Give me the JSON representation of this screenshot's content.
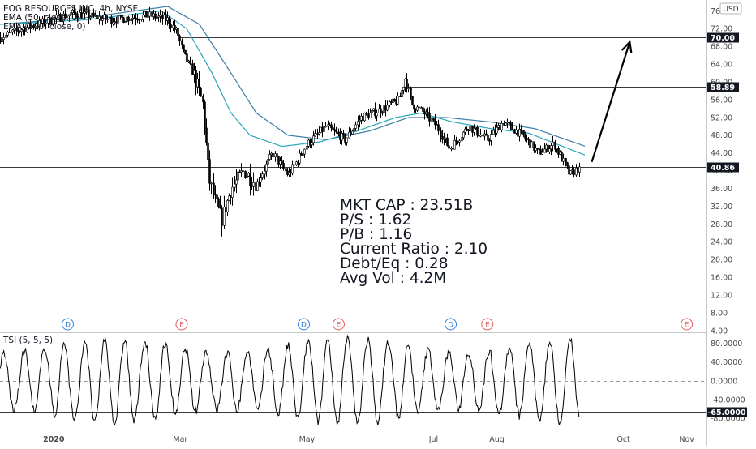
{
  "legend": {
    "title": "EOG RESOURCES INC, 4h, NYSE",
    "ema1": "EMA (50, close, 0)",
    "ema2": "EMA (100, close, 0)",
    "tsi": "TSI (5, 5, 5)"
  },
  "currency_badge": "USD",
  "fundamentals": [
    "MKT CAP : 23.51B",
    "P/S : 1.62",
    "P/B : 1.16",
    "Current Ratio : 2.10",
    "Debt/Eq : 0.28",
    "Avg Vol : 4.2M"
  ],
  "events": [
    {
      "label": "D",
      "x": 0.22,
      "color": "#2f7ed8"
    },
    {
      "label": "E",
      "x": 2.02,
      "color": "#e25a5a"
    },
    {
      "label": "D",
      "x": 3.95,
      "color": "#2f7ed8"
    },
    {
      "label": "E",
      "x": 4.5,
      "color": "#e25a5a"
    },
    {
      "label": "D",
      "x": 6.27,
      "color": "#2f7ed8"
    },
    {
      "label": "E",
      "x": 6.85,
      "color": "#e25a5a"
    },
    {
      "label": "E",
      "x": 10.0,
      "color": "#e25a5a"
    }
  ],
  "chart_data": [
    {
      "type": "candlestick",
      "x_unit": "months (0 = Jan 2020)",
      "xlim": [
        -0.85,
        10.3
      ],
      "ylim": [
        4,
        77
      ],
      "x_ticks": [
        {
          "label": "2020",
          "x": 0
        },
        {
          "label": "Mar",
          "x": 2
        },
        {
          "label": "May",
          "x": 4
        },
        {
          "label": "Jul",
          "x": 6
        },
        {
          "label": "Aug",
          "x": 7
        },
        {
          "label": "Oct",
          "x": 9
        },
        {
          "label": "Nov",
          "x": 10
        }
      ],
      "y_ticks": [
        4,
        8,
        12,
        16,
        20,
        24,
        28,
        32,
        36,
        40,
        44,
        48,
        52,
        56,
        60,
        64,
        68,
        72,
        76
      ],
      "price_waypoints": [
        {
          "x": -0.85,
          "y": 70
        },
        {
          "x": -0.5,
          "y": 72
        },
        {
          "x": 0.3,
          "y": 75.5
        },
        {
          "x": 0.9,
          "y": 74
        },
        {
          "x": 1.5,
          "y": 75
        },
        {
          "x": 1.8,
          "y": 74
        },
        {
          "x": 1.95,
          "y": 71
        },
        {
          "x": 2.05,
          "y": 66
        },
        {
          "x": 2.2,
          "y": 62
        },
        {
          "x": 2.35,
          "y": 55
        },
        {
          "x": 2.45,
          "y": 38
        },
        {
          "x": 2.55,
          "y": 33
        },
        {
          "x": 2.65,
          "y": 29
        },
        {
          "x": 2.8,
          "y": 36
        },
        {
          "x": 3.0,
          "y": 40
        },
        {
          "x": 3.2,
          "y": 37
        },
        {
          "x": 3.45,
          "y": 44
        },
        {
          "x": 3.7,
          "y": 39
        },
        {
          "x": 4.0,
          "y": 46
        },
        {
          "x": 4.3,
          "y": 50
        },
        {
          "x": 4.6,
          "y": 47
        },
        {
          "x": 4.85,
          "y": 52
        },
        {
          "x": 5.2,
          "y": 54
        },
        {
          "x": 5.45,
          "y": 56
        },
        {
          "x": 5.55,
          "y": 61
        },
        {
          "x": 5.65,
          "y": 55
        },
        {
          "x": 5.85,
          "y": 53
        },
        {
          "x": 6.05,
          "y": 50
        },
        {
          "x": 6.25,
          "y": 45
        },
        {
          "x": 6.55,
          "y": 50
        },
        {
          "x": 6.85,
          "y": 47
        },
        {
          "x": 7.1,
          "y": 51
        },
        {
          "x": 7.4,
          "y": 48
        },
        {
          "x": 7.65,
          "y": 44
        },
        {
          "x": 7.9,
          "y": 46
        },
        {
          "x": 8.05,
          "y": 42
        },
        {
          "x": 8.15,
          "y": 39
        },
        {
          "x": 8.3,
          "y": 40.86
        }
      ],
      "ema_50": [
        {
          "x": -0.85,
          "y": 73
        },
        {
          "x": 0.5,
          "y": 74
        },
        {
          "x": 1.7,
          "y": 76
        },
        {
          "x": 2.1,
          "y": 72
        },
        {
          "x": 2.5,
          "y": 62
        },
        {
          "x": 2.8,
          "y": 53
        },
        {
          "x": 3.1,
          "y": 48
        },
        {
          "x": 3.6,
          "y": 45.5
        },
        {
          "x": 4.2,
          "y": 46.5
        },
        {
          "x": 4.8,
          "y": 49
        },
        {
          "x": 5.4,
          "y": 52
        },
        {
          "x": 5.8,
          "y": 53
        },
        {
          "x": 6.3,
          "y": 51
        },
        {
          "x": 6.9,
          "y": 49.5
        },
        {
          "x": 7.5,
          "y": 48.5
        },
        {
          "x": 8.4,
          "y": 43.5
        }
      ],
      "ema_100": [
        {
          "x": -0.85,
          "y": 73
        },
        {
          "x": 0.5,
          "y": 74.5
        },
        {
          "x": 1.8,
          "y": 77
        },
        {
          "x": 2.3,
          "y": 73
        },
        {
          "x": 2.8,
          "y": 62
        },
        {
          "x": 3.2,
          "y": 53
        },
        {
          "x": 3.7,
          "y": 48
        },
        {
          "x": 4.3,
          "y": 47
        },
        {
          "x": 5.0,
          "y": 49
        },
        {
          "x": 5.6,
          "y": 52
        },
        {
          "x": 6.2,
          "y": 52
        },
        {
          "x": 6.9,
          "y": 51
        },
        {
          "x": 7.6,
          "y": 49.5
        },
        {
          "x": 8.4,
          "y": 45.5
        }
      ],
      "horizontal_levels": [
        {
          "label": "70.00",
          "y": 70,
          "x_start": 2.0
        },
        {
          "label": "58.89",
          "y": 58.89,
          "x_start": 5.6
        },
        {
          "label": "40.86",
          "y": 40.86,
          "x_start": -0.85
        }
      ],
      "arrow": {
        "from": {
          "x": 8.5,
          "y": 42
        },
        "to": {
          "x": 9.1,
          "y": 69
        }
      }
    },
    {
      "type": "line",
      "name": "TSI",
      "xlim": [
        -0.85,
        10.3
      ],
      "ylim": [
        -100,
        100
      ],
      "y_ticks": [
        80,
        40,
        0,
        -40,
        -80
      ],
      "y_tick_labels": [
        "80.0000",
        "40.0000",
        "0.0000",
        "-40.0000",
        "-80.0000"
      ],
      "levels": [
        {
          "label": "-65.0000",
          "y": -65
        }
      ],
      "zero_line": 0,
      "oscillation": {
        "period_months": 0.32,
        "amplitude_low": 60,
        "amplitude_high": 90
      }
    }
  ]
}
